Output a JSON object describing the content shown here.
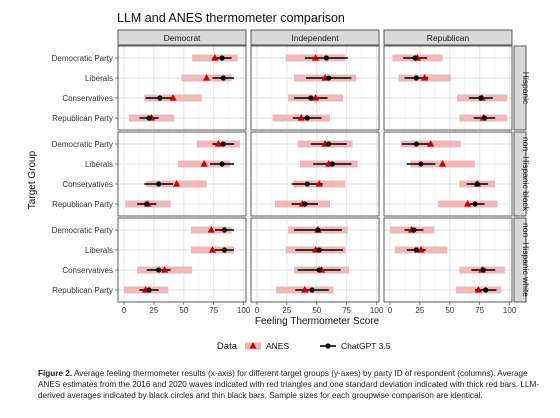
{
  "chart_data": {
    "type": "scatter",
    "title": "LLM and ANES thermometer comparison",
    "xlabel": "Feeling Thermometer Score",
    "ylabel": "Target Group",
    "xlim": [
      -5,
      102
    ],
    "xticks": [
      0,
      25,
      50,
      75,
      100
    ],
    "xtick_labels": [
      "0",
      "25",
      "50",
      "75",
      "100"
    ],
    "categories": [
      "Democratic Party",
      "Liberals",
      "Conservatives",
      "Republican Party"
    ],
    "columns": [
      "Democrat",
      "Independent",
      "Republican"
    ],
    "rows": [
      "Hispanic",
      "non−Hispanic black",
      "non−Hispanic white"
    ],
    "grid": true,
    "legend": {
      "title": "Data",
      "placement": "bottom",
      "entries": [
        {
          "label": "ANES",
          "marker": "triangle",
          "color": "#cc0000",
          "band_color": "#f0b4b4"
        },
        {
          "label": "ChatGPT 3.5",
          "marker": "circle",
          "color": "#000000"
        }
      ]
    },
    "cells": [
      [
        {
          "anes": [
            {
              "m": 76,
              "sd": 19
            },
            {
              "m": 69,
              "sd": 21
            },
            {
              "m": 41,
              "sd": 24
            },
            {
              "m": 23,
              "sd": 19
            }
          ],
          "gpt": [
            {
              "m": 82,
              "sd": 8
            },
            {
              "m": 83,
              "sd": 9
            },
            {
              "m": 30,
              "sd": 12
            },
            {
              "m": 21,
              "sd": 8
            }
          ]
        },
        {
          "anes": [
            {
              "m": 49,
              "sd": 25
            },
            {
              "m": 57,
              "sd": 26
            },
            {
              "m": 49,
              "sd": 23
            },
            {
              "m": 37,
              "sd": 24
            }
          ],
          "gpt": [
            {
              "m": 58,
              "sd": 18
            },
            {
              "m": 60,
              "sd": 19
            },
            {
              "m": 45,
              "sd": 14
            },
            {
              "m": 42,
              "sd": 12
            }
          ]
        },
        {
          "anes": [
            {
              "m": 23,
              "sd": 21
            },
            {
              "m": 29,
              "sd": 22
            },
            {
              "m": 77,
              "sd": 21
            },
            {
              "m": 78,
              "sd": 20
            }
          ],
          "gpt": [
            {
              "m": 21,
              "sd": 10
            },
            {
              "m": 22,
              "sd": 10
            },
            {
              "m": 76,
              "sd": 10
            },
            {
              "m": 79,
              "sd": 9
            }
          ]
        }
      ],
      [
        {
          "anes": [
            {
              "m": 79,
              "sd": 18
            },
            {
              "m": 67,
              "sd": 22
            },
            {
              "m": 44,
              "sd": 25
            },
            {
              "m": 20,
              "sd": 19
            }
          ],
          "gpt": [
            {
              "m": 83,
              "sd": 9
            },
            {
              "m": 82,
              "sd": 10
            },
            {
              "m": 29,
              "sd": 12
            },
            {
              "m": 19,
              "sd": 8
            }
          ]
        },
        {
          "anes": [
            {
              "m": 57,
              "sd": 23
            },
            {
              "m": 60,
              "sd": 24
            },
            {
              "m": 52,
              "sd": 22
            },
            {
              "m": 38,
              "sd": 23
            }
          ],
          "gpt": [
            {
              "m": 60,
              "sd": 15
            },
            {
              "m": 63,
              "sd": 16
            },
            {
              "m": 42,
              "sd": 13
            },
            {
              "m": 40,
              "sd": 11
            }
          ]
        },
        {
          "anes": [
            {
              "m": 34,
              "sd": 25
            },
            {
              "m": 44,
              "sd": 27
            },
            {
              "m": 73,
              "sd": 15
            },
            {
              "m": 65,
              "sd": 25
            }
          ],
          "gpt": [
            {
              "m": 22,
              "sd": 12
            },
            {
              "m": 26,
              "sd": 12
            },
            {
              "m": 73,
              "sd": 9
            },
            {
              "m": 71,
              "sd": 8
            }
          ]
        }
      ],
      [
        {
          "anes": [
            {
              "m": 73,
              "sd": 17
            },
            {
              "m": 74,
              "sd": 18
            },
            {
              "m": 34,
              "sd": 23
            },
            {
              "m": 18,
              "sd": 19
            }
          ],
          "gpt": [
            {
              "m": 84,
              "sd": 8
            },
            {
              "m": 84,
              "sd": 8
            },
            {
              "m": 29,
              "sd": 10
            },
            {
              "m": 21,
              "sd": 8
            }
          ]
        },
        {
          "anes": [
            {
              "m": 51,
              "sd": 25
            },
            {
              "m": 49,
              "sd": 25
            },
            {
              "m": 54,
              "sd": 23
            },
            {
              "m": 40,
              "sd": 24
            }
          ],
          "gpt": [
            {
              "m": 51,
              "sd": 20
            },
            {
              "m": 52,
              "sd": 20
            },
            {
              "m": 52,
              "sd": 18
            },
            {
              "m": 46,
              "sd": 14
            }
          ]
        },
        {
          "anes": [
            {
              "m": 18,
              "sd": 19
            },
            {
              "m": 26,
              "sd": 22
            },
            {
              "m": 77,
              "sd": 19
            },
            {
              "m": 74,
              "sd": 19
            }
          ],
          "gpt": [
            {
              "m": 20,
              "sd": 8
            },
            {
              "m": 22,
              "sd": 8
            },
            {
              "m": 78,
              "sd": 10
            },
            {
              "m": 80,
              "sd": 9
            }
          ]
        }
      ]
    ]
  },
  "caption": {
    "label": "Figure 2.",
    "text": " Average feeling thermometer results (x-axis) for different target groups (y-axes) by party ID of respondent (columns). Average ANES estimates from the 2016 and 2020 waves indicated with red triangles and one standard deviation indicated with thick red bars. LLM-derived averages indicated by black circles and thin black bars. Sample sizes for each groupwise comparison are identical."
  }
}
